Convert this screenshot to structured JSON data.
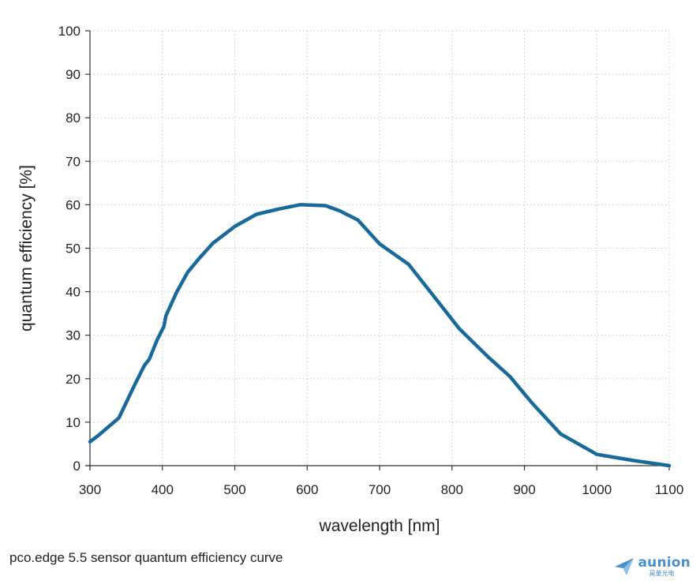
{
  "chart_data": {
    "type": "line",
    "title": "",
    "xlabel": "wavelength [nm]",
    "ylabel": "quantum efficiency [%]",
    "xlim": [
      300,
      1100
    ],
    "ylim": [
      0,
      100
    ],
    "x_ticks": [
      300,
      400,
      500,
      600,
      700,
      800,
      900,
      1000,
      1100
    ],
    "y_ticks": [
      0,
      10,
      20,
      30,
      40,
      50,
      60,
      70,
      80,
      90,
      100
    ],
    "grid": true,
    "line_color": "#176a9a",
    "series": [
      {
        "x": [
          300,
          312,
          340,
          360,
          375,
          382,
          393,
          402,
          405,
          420,
          435,
          450,
          470,
          500,
          530,
          560,
          590,
          625,
          645,
          670,
          700,
          740,
          770,
          810,
          850,
          880,
          910,
          950,
          1000,
          1050,
          1100
        ],
        "values": [
          5.5,
          7,
          11,
          18,
          23,
          24.5,
          29,
          32,
          34.5,
          40,
          44.5,
          47.5,
          51.2,
          55,
          57.8,
          59,
          60,
          59.8,
          58.6,
          56.5,
          51,
          46.3,
          40,
          31.5,
          25,
          20.5,
          14.5,
          7.3,
          2.6,
          1.2,
          0
        ]
      }
    ]
  },
  "caption": "pco.edge 5.5 sensor quantum efficiency curve",
  "logo": {
    "name": "aunion",
    "sub": "昊量光电",
    "color": "#4a90c8"
  }
}
